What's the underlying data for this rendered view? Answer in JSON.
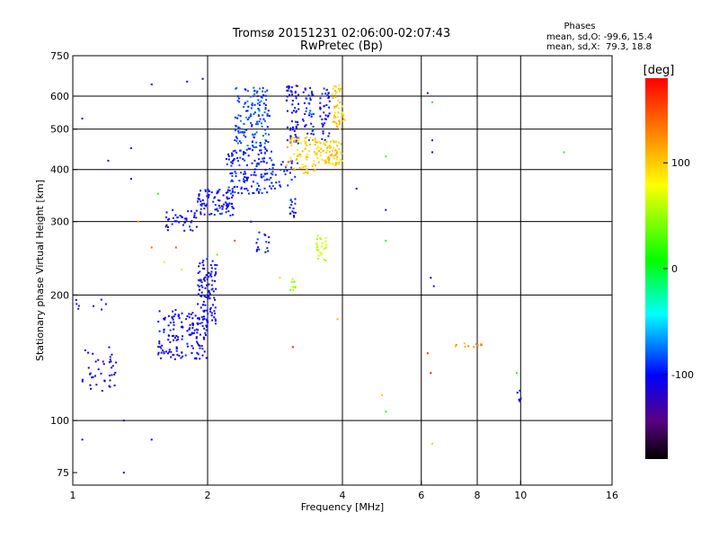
{
  "chart_data": {
    "type": "scatter",
    "title": "Tromsø 20151231 02:06:00-02:07:43",
    "subtitle": "RwPretec (Bp)",
    "xlabel": "Frequency [MHz]",
    "ylabel": "Stationary phase Virtual Height [km]",
    "x_scale": "log",
    "y_scale": "log",
    "xlim": [
      1,
      16
    ],
    "ylim": [
      70,
      750
    ],
    "x_ticks": [
      "1",
      "2",
      "4",
      "6",
      "8",
      "10",
      "16"
    ],
    "y_ticks": [
      "75",
      "100",
      "200",
      "300",
      "400",
      "500",
      "600",
      "750"
    ],
    "x_gridlines": [
      2,
      4,
      6,
      8,
      10
    ],
    "y_gridlines": [
      100,
      200,
      300,
      400,
      500,
      600
    ],
    "grid": true,
    "phases_box": {
      "title": "Phases",
      "line1": "mean, sd,O: -99.6, 15.4",
      "line2": "mean, sd,X:  79.3, 18.8"
    },
    "colorbar": {
      "unit_label": "[deg]",
      "ticks": [
        "100",
        "0",
        "-100"
      ],
      "tick_values": [
        100,
        0,
        -100
      ],
      "range": [
        -180,
        180
      ]
    },
    "clusters": [
      {
        "x": [
          1.05,
          1.25
        ],
        "y": [
          115,
          150
        ],
        "n": 40,
        "phase": -110
      },
      {
        "x": [
          1.55,
          2.0
        ],
        "y": [
          140,
          185
        ],
        "n": 150,
        "phase": -105
      },
      {
        "x": [
          1.9,
          2.1
        ],
        "y": [
          170,
          245
        ],
        "n": 100,
        "phase": -105
      },
      {
        "x": [
          1.6,
          1.9
        ],
        "y": [
          285,
          320
        ],
        "n": 40,
        "phase": -105
      },
      {
        "x": [
          1.9,
          2.3
        ],
        "y": [
          310,
          360
        ],
        "n": 90,
        "phase": -100
      },
      {
        "x": [
          2.2,
          2.8
        ],
        "y": [
          350,
          450
        ],
        "n": 140,
        "phase": -95
      },
      {
        "x": [
          2.3,
          2.75
        ],
        "y": [
          450,
          630
        ],
        "n": 140,
        "phase": -85
      },
      {
        "x": [
          2.75,
          3.2
        ],
        "y": [
          360,
          420
        ],
        "n": 30,
        "phase": -100
      },
      {
        "x": [
          3.0,
          3.2
        ],
        "y": [
          460,
          640
        ],
        "n": 60,
        "phase": -105
      },
      {
        "x": [
          3.25,
          3.45
        ],
        "y": [
          470,
          630
        ],
        "n": 40,
        "phase": -95
      },
      {
        "x": [
          3.55,
          3.75
        ],
        "y": [
          460,
          630
        ],
        "n": 40,
        "phase": -100
      },
      {
        "x": [
          3.0,
          3.5
        ],
        "y": [
          390,
          480
        ],
        "n": 70,
        "phase": 100
      },
      {
        "x": [
          3.5,
          4.0
        ],
        "y": [
          410,
          470
        ],
        "n": 80,
        "phase": 100
      },
      {
        "x": [
          3.8,
          4.05
        ],
        "y": [
          500,
          640
        ],
        "n": 50,
        "phase": 100
      },
      {
        "x": [
          3.05,
          3.15
        ],
        "y": [
          300,
          340
        ],
        "n": 15,
        "phase": -100
      },
      {
        "x": [
          3.5,
          3.7
        ],
        "y": [
          240,
          280
        ],
        "n": 25,
        "phase": 60
      },
      {
        "x": [
          3.05,
          3.15
        ],
        "y": [
          205,
          220
        ],
        "n": 10,
        "phase": 50
      },
      {
        "x": [
          2.55,
          2.75
        ],
        "y": [
          250,
          290
        ],
        "n": 15,
        "phase": -100
      },
      {
        "x": [
          1.0,
          1.2
        ],
        "y": [
          180,
          195
        ],
        "n": 8,
        "phase": -110
      },
      {
        "x": [
          7.0,
          8.2
        ],
        "y": [
          150,
          153
        ],
        "n": 12,
        "phase": 120
      },
      {
        "x": [
          9.7,
          10.2
        ],
        "y": [
          110,
          118
        ],
        "n": 6,
        "phase": -110
      }
    ],
    "scattered_points": [
      {
        "x": 1.05,
        "y": 530,
        "phase": -110
      },
      {
        "x": 1.2,
        "y": 420,
        "phase": -110
      },
      {
        "x": 1.35,
        "y": 450,
        "phase": -110
      },
      {
        "x": 1.5,
        "y": 640,
        "phase": -110
      },
      {
        "x": 1.8,
        "y": 650,
        "phase": -110
      },
      {
        "x": 1.95,
        "y": 660,
        "phase": -110
      },
      {
        "x": 1.4,
        "y": 300,
        "phase": 120
      },
      {
        "x": 1.5,
        "y": 260,
        "phase": 140
      },
      {
        "x": 1.6,
        "y": 240,
        "phase": 90
      },
      {
        "x": 1.75,
        "y": 230,
        "phase": 60
      },
      {
        "x": 2.1,
        "y": 250,
        "phase": 30
      },
      {
        "x": 1.7,
        "y": 260,
        "phase": 150
      },
      {
        "x": 2.5,
        "y": 300,
        "phase": -100
      },
      {
        "x": 2.9,
        "y": 220,
        "phase": 100
      },
      {
        "x": 1.3,
        "y": 100,
        "phase": -110
      },
      {
        "x": 1.05,
        "y": 90,
        "phase": -110
      },
      {
        "x": 1.5,
        "y": 90,
        "phase": -110
      },
      {
        "x": 1.3,
        "y": 75,
        "phase": -110
      },
      {
        "x": 4.3,
        "y": 360,
        "phase": -110
      },
      {
        "x": 5.0,
        "y": 430,
        "phase": 20
      },
      {
        "x": 5.0,
        "y": 320,
        "phase": -110
      },
      {
        "x": 5.0,
        "y": 270,
        "phase": 0
      },
      {
        "x": 6.2,
        "y": 610,
        "phase": -110
      },
      {
        "x": 6.35,
        "y": 580,
        "phase": 10
      },
      {
        "x": 6.35,
        "y": 470,
        "phase": -100
      },
      {
        "x": 6.35,
        "y": 440,
        "phase": -110
      },
      {
        "x": 6.3,
        "y": 220,
        "phase": -110
      },
      {
        "x": 6.4,
        "y": 210,
        "phase": -120
      },
      {
        "x": 6.2,
        "y": 145,
        "phase": 160
      },
      {
        "x": 6.3,
        "y": 130,
        "phase": 170
      },
      {
        "x": 6.35,
        "y": 88,
        "phase": 100
      },
      {
        "x": 5.0,
        "y": 105,
        "phase": 10
      },
      {
        "x": 4.9,
        "y": 115,
        "phase": 100
      },
      {
        "x": 9.8,
        "y": 130,
        "phase": 10
      },
      {
        "x": 12.5,
        "y": 440,
        "phase": 10
      },
      {
        "x": 3.9,
        "y": 175,
        "phase": 110
      },
      {
        "x": 3.1,
        "y": 150,
        "phase": 170
      },
      {
        "x": 2.3,
        "y": 270,
        "phase": 150
      },
      {
        "x": 1.35,
        "y": 380,
        "phase": -110
      },
      {
        "x": 1.55,
        "y": 350,
        "phase": 20
      }
    ]
  }
}
